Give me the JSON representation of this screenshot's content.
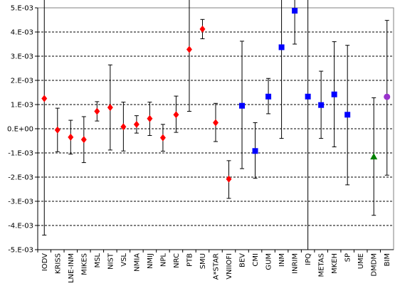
{
  "chart_data": {
    "type": "scatter",
    "title": "",
    "xlabel": "",
    "ylabel": "",
    "ylim": [
      -0.005,
      0.005
    ],
    "y_ticks": [
      {
        "value": 0.005,
        "label": "5.E-03"
      },
      {
        "value": 0.004,
        "label": "4.E-03"
      },
      {
        "value": 0.003,
        "label": "3.E-03"
      },
      {
        "value": 0.002,
        "label": "2.E-03"
      },
      {
        "value": 0.001,
        "label": "1.E-03"
      },
      {
        "value": 0.0,
        "label": "0.E+00"
      },
      {
        "value": -0.001,
        "label": "-1.E-03"
      },
      {
        "value": -0.002,
        "label": "-2.E-03"
      },
      {
        "value": -0.003,
        "label": "-3.E-03"
      },
      {
        "value": -0.004,
        "label": "-4.E-03"
      },
      {
        "value": -0.005,
        "label": "-5.E-03"
      }
    ],
    "grid": "horizontal dashed",
    "legend": "none",
    "marker_colors": {
      "red": "#ff0000",
      "blue": "#0000ff",
      "green": "#008000",
      "purple": "#9933cc",
      "errorbar": "#000000"
    },
    "points": [
      {
        "category": "IODV",
        "y": 0.00125,
        "low": -0.0044,
        "high": 0.0052,
        "marker": "diamond",
        "color": "red"
      },
      {
        "category": "KRISS",
        "y": -5e-05,
        "low": -0.00095,
        "high": 0.00085,
        "marker": "diamond",
        "color": "red"
      },
      {
        "category": "LNE-INM",
        "y": -0.00035,
        "low": -0.00105,
        "high": 0.00035,
        "marker": "diamond",
        "color": "red"
      },
      {
        "category": "MIKES",
        "y": -0.00045,
        "low": -0.0014,
        "high": 0.0005,
        "marker": "diamond",
        "color": "red"
      },
      {
        "category": "MSL",
        "y": 0.00072,
        "low": 0.00032,
        "high": 0.00112,
        "marker": "diamond",
        "color": "red"
      },
      {
        "category": "NIST",
        "y": 0.00088,
        "low": -0.00088,
        "high": 0.00264,
        "marker": "diamond",
        "color": "red"
      },
      {
        "category": "VSL",
        "y": 8e-05,
        "low": -0.00092,
        "high": 0.0011,
        "marker": "diamond",
        "color": "red"
      },
      {
        "category": "NMIA",
        "y": 0.00018,
        "low": -0.00018,
        "high": 0.00054,
        "marker": "diamond",
        "color": "red"
      },
      {
        "category": "NMIJ",
        "y": 0.00042,
        "low": -0.00028,
        "high": 0.0011,
        "marker": "diamond",
        "color": "red"
      },
      {
        "category": "NPL",
        "y": -0.00037,
        "low": -0.00093,
        "high": 0.00018,
        "marker": "diamond",
        "color": "red"
      },
      {
        "category": "NRC",
        "y": 0.00058,
        "low": -0.00015,
        "high": 0.00135,
        "marker": "diamond",
        "color": "red"
      },
      {
        "category": "PTB",
        "y": 0.00328,
        "low": 0.00072,
        "high": 0.0052,
        "marker": "diamond",
        "color": "red"
      },
      {
        "category": "SMU",
        "y": 0.00412,
        "low": 0.00372,
        "high": 0.00452,
        "marker": "diamond",
        "color": "red"
      },
      {
        "category": "A*STAR",
        "y": 0.00025,
        "low": -0.00053,
        "high": 0.00105,
        "marker": "diamond",
        "color": "red"
      },
      {
        "category": "VNIIOFI",
        "y": -0.00208,
        "low": -0.00288,
        "high": -0.00132,
        "marker": "diamond",
        "color": "red"
      },
      {
        "category": "BEV",
        "y": 0.00095,
        "low": -0.00165,
        "high": 0.00362,
        "marker": "square",
        "color": "blue"
      },
      {
        "category": "CMI",
        "y": -0.00092,
        "low": -0.00205,
        "high": 0.00025,
        "marker": "square",
        "color": "blue"
      },
      {
        "category": "GUM",
        "y": 0.00133,
        "low": 0.00062,
        "high": 0.00208,
        "marker": "square",
        "color": "blue"
      },
      {
        "category": "INM",
        "y": 0.00337,
        "low": -0.0004,
        "high": 0.0052,
        "marker": "square",
        "color": "blue"
      },
      {
        "category": "INRIM",
        "y": 0.00488,
        "low": 0.0035,
        "high": 0.0052,
        "marker": "square",
        "color": "blue"
      },
      {
        "category": "IPQ",
        "y": 0.00133,
        "low": -0.0052,
        "high": 0.0052,
        "marker": "square",
        "color": "blue"
      },
      {
        "category": "METAS",
        "y": 0.00098,
        "low": -0.0004,
        "high": 0.00238,
        "marker": "square",
        "color": "blue"
      },
      {
        "category": "MKEH",
        "y": 0.00142,
        "low": -0.00075,
        "high": 0.0036,
        "marker": "square",
        "color": "blue"
      },
      {
        "category": "SP",
        "y": 0.00058,
        "low": -0.00232,
        "high": 0.00345,
        "marker": "square",
        "color": "blue"
      },
      {
        "category": "UME",
        "y": null,
        "low": null,
        "high": null,
        "marker": "none",
        "color": "blue"
      },
      {
        "category": "DMDM",
        "y": -0.00115,
        "low": -0.00358,
        "high": 0.00128,
        "marker": "triangle",
        "color": "green"
      },
      {
        "category": "BIM",
        "y": 0.00132,
        "low": -0.00192,
        "high": 0.00448,
        "marker": "circle",
        "color": "purple"
      }
    ]
  }
}
